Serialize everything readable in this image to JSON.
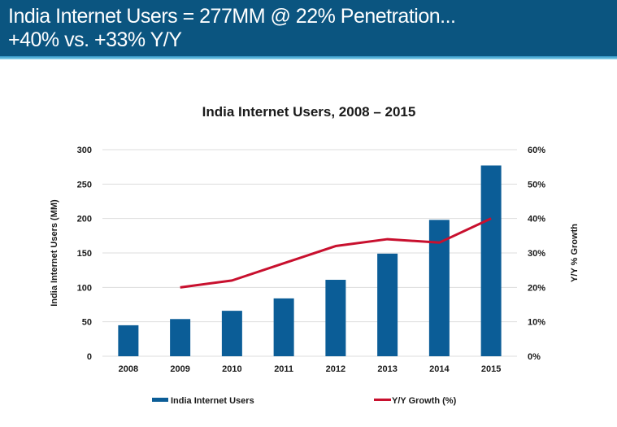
{
  "header": {
    "line1": "India Internet Users = 277MM @ 22% Penetration...",
    "line2": "+40% vs. +33% Y/Y"
  },
  "colors": {
    "header_bg": "#0b5580",
    "bar": "#0b5d97",
    "line": "#c8102e",
    "grid": "#dddddd"
  },
  "chart_data": {
    "type": "bar",
    "title": "India Internet Users, 2008 – 2015",
    "xlabel": "",
    "ylabel": "India Internet Users (MM)",
    "y2label": "Y/Y % Growth",
    "categories": [
      "2008",
      "2009",
      "2010",
      "2011",
      "2012",
      "2013",
      "2014",
      "2015"
    ],
    "ylim": [
      0,
      300
    ],
    "yticks": [
      0,
      50,
      100,
      150,
      200,
      250,
      300
    ],
    "ytick_labels": [
      "0",
      "50",
      "100",
      "150",
      "200",
      "250",
      "300"
    ],
    "y2lim": [
      0,
      60
    ],
    "y2ticks": [
      0,
      10,
      20,
      30,
      40,
      50,
      60
    ],
    "y2tick_labels": [
      "0%",
      "10%",
      "20%",
      "30%",
      "40%",
      "50%",
      "60%"
    ],
    "grid": true,
    "legend_position": "bottom",
    "series": [
      {
        "name": "India Internet Users",
        "type": "bar",
        "axis": "left",
        "values": [
          45,
          54,
          66,
          84,
          111,
          149,
          198,
          277
        ]
      },
      {
        "name": "Y/Y Growth (%)",
        "type": "line",
        "axis": "right",
        "values": [
          null,
          20,
          22,
          27,
          32,
          34,
          33,
          40
        ]
      }
    ]
  }
}
